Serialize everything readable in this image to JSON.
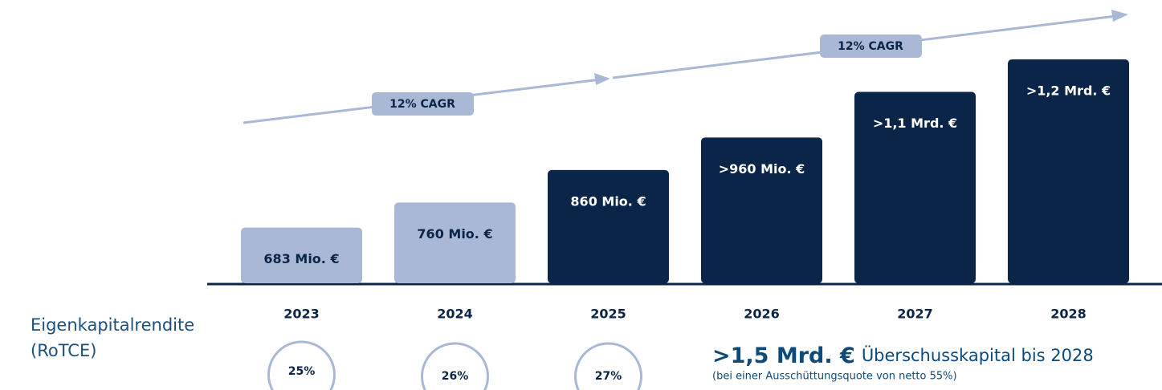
{
  "chart_data": {
    "type": "bar",
    "categories": [
      "2023",
      "2024",
      "2025",
      "2026",
      "2027",
      "2028"
    ],
    "values": [
      683,
      760,
      860,
      960,
      1100,
      1200
    ],
    "value_labels": [
      "683 Mio. €",
      "760 Mio. €",
      "860 Mio. €",
      ">960 Mio. €",
      ">1,1 Mrd. €",
      ">1,2 Mrd. €"
    ],
    "colors": [
      "#a9b8d4",
      "#a9b8d4",
      "#0b2548",
      "#0b2548",
      "#0b2548",
      "#0b2548"
    ],
    "value_label_colors": [
      "#0b2548",
      "#0b2548",
      "#ffffff",
      "#ffffff",
      "#ffffff",
      "#ffffff"
    ],
    "ylim": [
      512,
      1200
    ],
    "annotations": [
      "12% CAGR",
      "12% CAGR"
    ]
  },
  "rotce": {
    "label": [
      "Eigenkapitalrendite",
      "(RoTCE)"
    ],
    "values": [
      25,
      26,
      27
    ],
    "value_labels": [
      "25%",
      "26%",
      "27%"
    ]
  },
  "excess": {
    "headline": ">1,5 Mrd. €",
    "text": "Überschusskapital bis 2028",
    "note": "(bei einer Ausschüttungsquote von netto 55%)"
  }
}
